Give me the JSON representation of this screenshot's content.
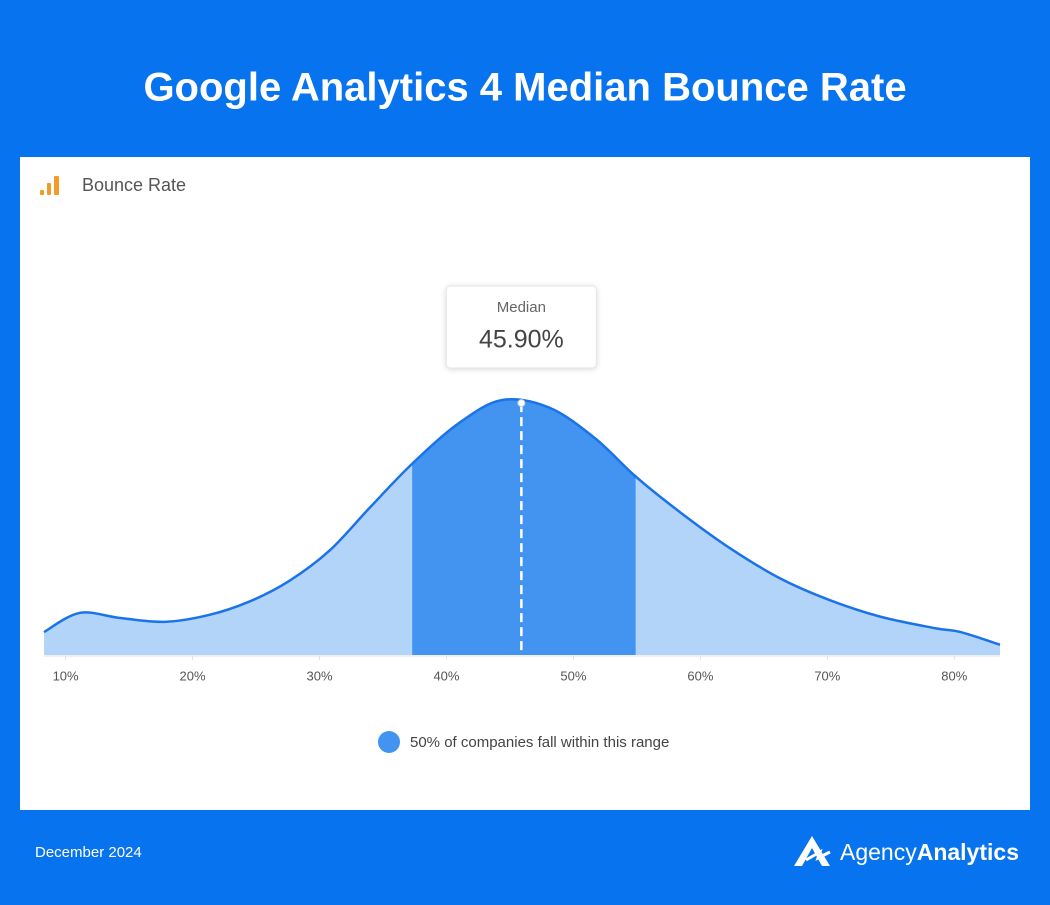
{
  "header": {
    "title": "Google Analytics 4 Median Bounce Rate"
  },
  "chart_data": {
    "type": "area",
    "title": "Bounce Rate",
    "x": [
      8.3,
      11.1,
      14.3,
      17.8,
      21.3,
      24.5,
      27.6,
      30.8,
      34.0,
      37.3,
      41.0,
      44.4,
      48.1,
      51.7,
      54.9,
      58.4,
      62.3,
      66.3,
      70.2,
      74.2,
      78.5,
      80.5,
      83.6
    ],
    "series": [
      {
        "color": "#1a73e8",
        "fill": "#b3d4f9",
        "values": [
          9,
          16.5,
          14.5,
          13,
          15.7,
          21,
          29,
          41,
          58,
          75,
          91,
          100,
          97,
          85,
          70,
          56,
          42,
          30,
          21.5,
          15,
          10.5,
          9,
          4
        ]
      }
    ],
    "xlim": [
      8.3,
      83.6
    ],
    "ylim": [
      0,
      100
    ],
    "xticks": [
      {
        "value": 10,
        "label": "10%"
      },
      {
        "value": 20,
        "label": "20%"
      },
      {
        "value": 30,
        "label": "30%"
      },
      {
        "value": 40,
        "label": "40%"
      },
      {
        "value": 50,
        "label": "50%"
      },
      {
        "value": 60,
        "label": "60%"
      },
      {
        "value": 70,
        "label": "70%"
      },
      {
        "value": 80,
        "label": "80%"
      }
    ],
    "range": {
      "label": "50% of companies fall within this range",
      "values": [
        37.3,
        54.9
      ],
      "color": "#4393f0"
    },
    "median": {
      "label": "Median",
      "value": 45.9,
      "value_label": "45.90%"
    }
  },
  "footer": {
    "date": "December 2024",
    "brand": [
      "Agency",
      "Analytics"
    ]
  }
}
